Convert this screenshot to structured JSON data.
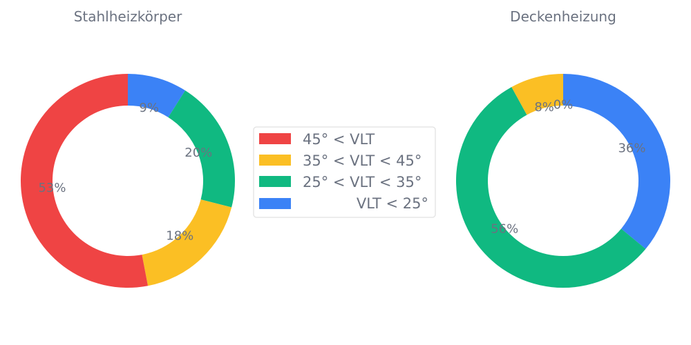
{
  "colors": {
    "text": "#6b7280",
    "legend_border": "#d9d9d9"
  },
  "legend": {
    "location": "center",
    "entries": [
      {
        "label": "45° < VLT",
        "color": "#ef4444"
      },
      {
        "label": "35° < VLT < 45°",
        "color": "#fbbf24"
      },
      {
        "label": "25° < VLT < 35°",
        "color": "#10b981"
      },
      {
        "label": "VLT < 25°",
        "color": "#3b82f6"
      }
    ]
  },
  "chart_data": [
    {
      "type": "pie",
      "style": "donut",
      "title": "Stahlheizkörper",
      "start_angle_deg": 90,
      "direction": "clockwise",
      "slices": [
        {
          "label": "VLT < 25°",
          "value": 9,
          "text": "9%",
          "color": "#3b82f6"
        },
        {
          "label": "25° < VLT < 35°",
          "value": 20,
          "text": "20%",
          "color": "#10b981"
        },
        {
          "label": "35° < VLT < 45°",
          "value": 18,
          "text": "18%",
          "color": "#fbbf24"
        },
        {
          "label": "45° < VLT",
          "value": 53,
          "text": "53%",
          "color": "#ef4444"
        }
      ]
    },
    {
      "type": "pie",
      "style": "donut",
      "title": "Deckenheizung",
      "start_angle_deg": 90,
      "direction": "clockwise",
      "slices": [
        {
          "label": "VLT < 25°",
          "value": 36,
          "text": "36%",
          "color": "#3b82f6"
        },
        {
          "label": "25° < VLT < 35°",
          "value": 56,
          "text": "56%",
          "color": "#10b981"
        },
        {
          "label": "35° < VLT < 45°",
          "value": 8,
          "text": "8%",
          "color": "#fbbf24"
        },
        {
          "label": "45° < VLT",
          "value": 0,
          "text": "0%",
          "color": "#ef4444"
        }
      ]
    }
  ]
}
